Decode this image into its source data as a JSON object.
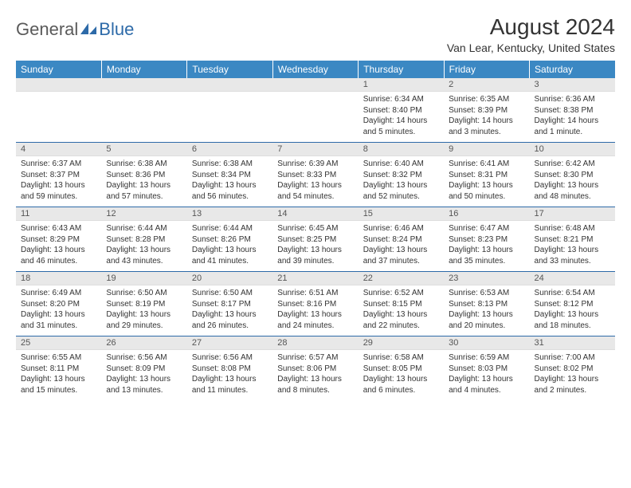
{
  "logo": {
    "text1": "General",
    "text2": "Blue"
  },
  "title": "August 2024",
  "location": "Van Lear, Kentucky, United States",
  "colors": {
    "header_bg": "#3b88c3",
    "header_text": "#ffffff",
    "rule": "#2d6aa8",
    "daynum_bg": "#e8e8e8",
    "body_text": "#333333",
    "logo_gray": "#5a5a5a",
    "logo_blue": "#2d6aa8"
  },
  "day_headers": [
    "Sunday",
    "Monday",
    "Tuesday",
    "Wednesday",
    "Thursday",
    "Friday",
    "Saturday"
  ],
  "weeks": [
    [
      null,
      null,
      null,
      null,
      {
        "n": "1",
        "sunrise": "6:34 AM",
        "sunset": "8:40 PM",
        "daylight": "14 hours and 5 minutes."
      },
      {
        "n": "2",
        "sunrise": "6:35 AM",
        "sunset": "8:39 PM",
        "daylight": "14 hours and 3 minutes."
      },
      {
        "n": "3",
        "sunrise": "6:36 AM",
        "sunset": "8:38 PM",
        "daylight": "14 hours and 1 minute."
      }
    ],
    [
      {
        "n": "4",
        "sunrise": "6:37 AM",
        "sunset": "8:37 PM",
        "daylight": "13 hours and 59 minutes."
      },
      {
        "n": "5",
        "sunrise": "6:38 AM",
        "sunset": "8:36 PM",
        "daylight": "13 hours and 57 minutes."
      },
      {
        "n": "6",
        "sunrise": "6:38 AM",
        "sunset": "8:34 PM",
        "daylight": "13 hours and 56 minutes."
      },
      {
        "n": "7",
        "sunrise": "6:39 AM",
        "sunset": "8:33 PM",
        "daylight": "13 hours and 54 minutes."
      },
      {
        "n": "8",
        "sunrise": "6:40 AM",
        "sunset": "8:32 PM",
        "daylight": "13 hours and 52 minutes."
      },
      {
        "n": "9",
        "sunrise": "6:41 AM",
        "sunset": "8:31 PM",
        "daylight": "13 hours and 50 minutes."
      },
      {
        "n": "10",
        "sunrise": "6:42 AM",
        "sunset": "8:30 PM",
        "daylight": "13 hours and 48 minutes."
      }
    ],
    [
      {
        "n": "11",
        "sunrise": "6:43 AM",
        "sunset": "8:29 PM",
        "daylight": "13 hours and 46 minutes."
      },
      {
        "n": "12",
        "sunrise": "6:44 AM",
        "sunset": "8:28 PM",
        "daylight": "13 hours and 43 minutes."
      },
      {
        "n": "13",
        "sunrise": "6:44 AM",
        "sunset": "8:26 PM",
        "daylight": "13 hours and 41 minutes."
      },
      {
        "n": "14",
        "sunrise": "6:45 AM",
        "sunset": "8:25 PM",
        "daylight": "13 hours and 39 minutes."
      },
      {
        "n": "15",
        "sunrise": "6:46 AM",
        "sunset": "8:24 PM",
        "daylight": "13 hours and 37 minutes."
      },
      {
        "n": "16",
        "sunrise": "6:47 AM",
        "sunset": "8:23 PM",
        "daylight": "13 hours and 35 minutes."
      },
      {
        "n": "17",
        "sunrise": "6:48 AM",
        "sunset": "8:21 PM",
        "daylight": "13 hours and 33 minutes."
      }
    ],
    [
      {
        "n": "18",
        "sunrise": "6:49 AM",
        "sunset": "8:20 PM",
        "daylight": "13 hours and 31 minutes."
      },
      {
        "n": "19",
        "sunrise": "6:50 AM",
        "sunset": "8:19 PM",
        "daylight": "13 hours and 29 minutes."
      },
      {
        "n": "20",
        "sunrise": "6:50 AM",
        "sunset": "8:17 PM",
        "daylight": "13 hours and 26 minutes."
      },
      {
        "n": "21",
        "sunrise": "6:51 AM",
        "sunset": "8:16 PM",
        "daylight": "13 hours and 24 minutes."
      },
      {
        "n": "22",
        "sunrise": "6:52 AM",
        "sunset": "8:15 PM",
        "daylight": "13 hours and 22 minutes."
      },
      {
        "n": "23",
        "sunrise": "6:53 AM",
        "sunset": "8:13 PM",
        "daylight": "13 hours and 20 minutes."
      },
      {
        "n": "24",
        "sunrise": "6:54 AM",
        "sunset": "8:12 PM",
        "daylight": "13 hours and 18 minutes."
      }
    ],
    [
      {
        "n": "25",
        "sunrise": "6:55 AM",
        "sunset": "8:11 PM",
        "daylight": "13 hours and 15 minutes."
      },
      {
        "n": "26",
        "sunrise": "6:56 AM",
        "sunset": "8:09 PM",
        "daylight": "13 hours and 13 minutes."
      },
      {
        "n": "27",
        "sunrise": "6:56 AM",
        "sunset": "8:08 PM",
        "daylight": "13 hours and 11 minutes."
      },
      {
        "n": "28",
        "sunrise": "6:57 AM",
        "sunset": "8:06 PM",
        "daylight": "13 hours and 8 minutes."
      },
      {
        "n": "29",
        "sunrise": "6:58 AM",
        "sunset": "8:05 PM",
        "daylight": "13 hours and 6 minutes."
      },
      {
        "n": "30",
        "sunrise": "6:59 AM",
        "sunset": "8:03 PM",
        "daylight": "13 hours and 4 minutes."
      },
      {
        "n": "31",
        "sunrise": "7:00 AM",
        "sunset": "8:02 PM",
        "daylight": "13 hours and 2 minutes."
      }
    ]
  ],
  "labels": {
    "sunrise": "Sunrise: ",
    "sunset": "Sunset: ",
    "daylight": "Daylight: "
  }
}
